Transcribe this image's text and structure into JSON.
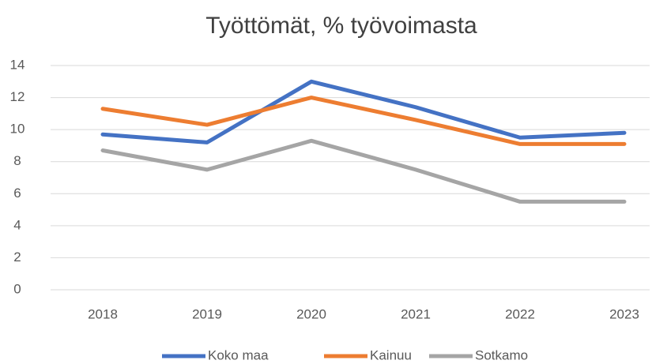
{
  "chart_data": {
    "type": "line",
    "title": "Työttömät, % työvoimasta",
    "categories": [
      "2018",
      "2019",
      "2020",
      "2021",
      "2022",
      "2023"
    ],
    "series": [
      {
        "name": "Koko maa",
        "color": "#4472c4",
        "values": [
          9.7,
          9.2,
          13.0,
          11.4,
          9.5,
          9.8
        ]
      },
      {
        "name": "Kainuu",
        "color": "#ed7d31",
        "values": [
          11.3,
          10.3,
          12.0,
          10.6,
          9.1,
          9.1
        ]
      },
      {
        "name": "Sotkamo",
        "color": "#a5a5a5",
        "values": [
          8.7,
          7.5,
          9.3,
          7.5,
          5.5,
          5.5
        ]
      }
    ],
    "ylim": [
      0,
      14
    ],
    "yticks": [
      0,
      2,
      4,
      6,
      8,
      10,
      12,
      14
    ],
    "grid": true,
    "legend": "bottom"
  }
}
